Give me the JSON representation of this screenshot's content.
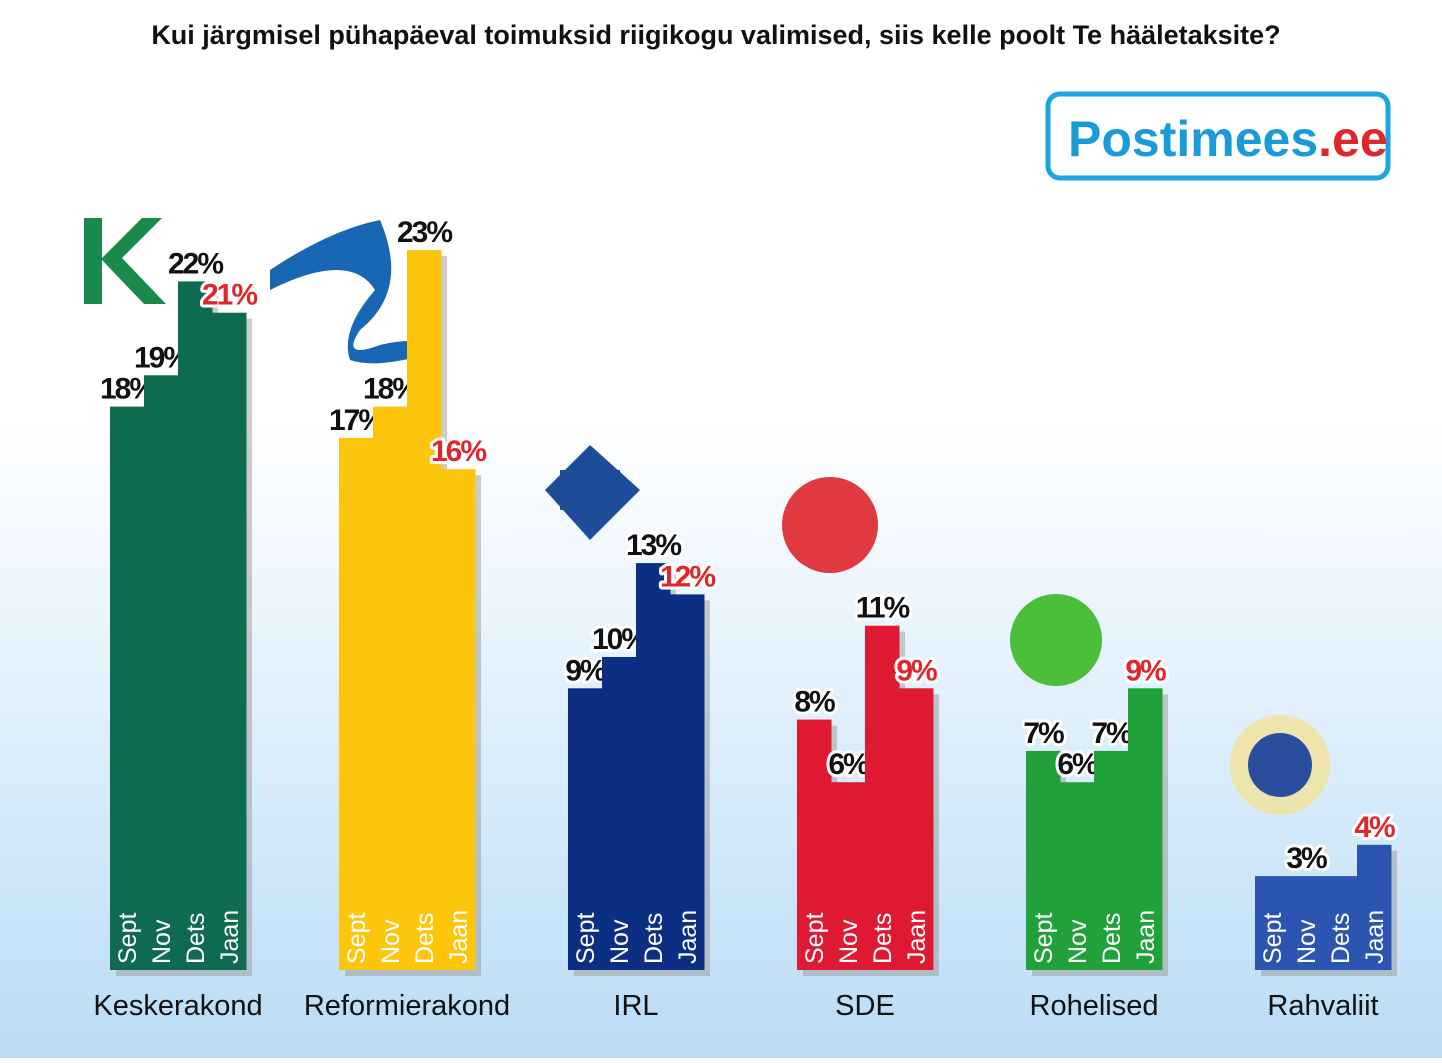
{
  "chart_data": {
    "type": "bar",
    "title": "Kui järgmisel pühapäeval toimuksid riigikogu valimised, siis kelle poolt Te hääletaksite?",
    "source_logo": {
      "name": "Postimees",
      "suffix": ".ee"
    },
    "categories": [
      "Keskerakond",
      "Reformierakond",
      "IRL",
      "SDE",
      "Rohelised",
      "Rahvaliit"
    ],
    "colors": [
      "#0f6b50",
      "#fdc60d",
      "#0c2f84",
      "#e01933",
      "#20a13a",
      "#2b55b0"
    ],
    "series": [
      {
        "name": "Sept",
        "values": [
          18,
          17,
          9,
          8,
          7,
          3
        ],
        "value_labels": [
          "18%",
          "17%",
          "9%",
          "8%",
          "7%",
          null
        ]
      },
      {
        "name": "Nov",
        "values": [
          19,
          18,
          10,
          6,
          6,
          3
        ],
        "value_labels": [
          "19%",
          "18%",
          "10%",
          "6%",
          "6%",
          "3%"
        ]
      },
      {
        "name": "Dets",
        "values": [
          22,
          23,
          13,
          11,
          7,
          3
        ],
        "value_labels": [
          "22%",
          "23%",
          "13%",
          "11%",
          "7%",
          null
        ]
      },
      {
        "name": "Jaan",
        "values": [
          21,
          16,
          12,
          9,
          9,
          4
        ],
        "value_labels": [
          "21%",
          "16%",
          "12%",
          "9%",
          "9%",
          "4%"
        ]
      }
    ]
  }
}
